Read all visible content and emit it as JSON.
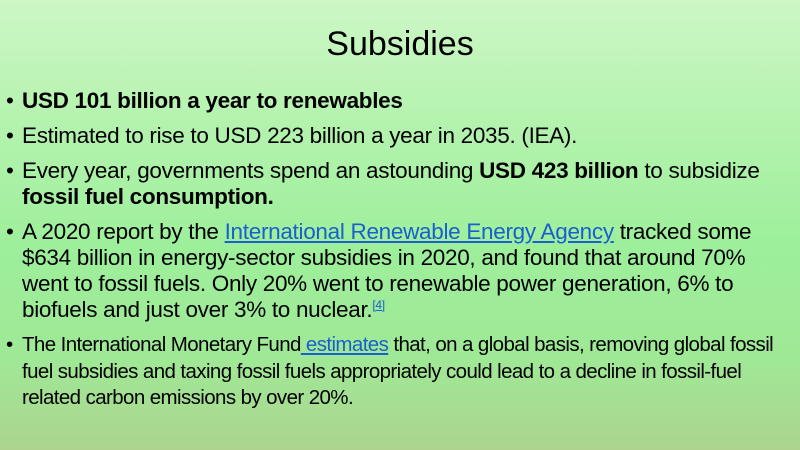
{
  "slide": {
    "title": "Subsidies",
    "bullets": [
      {
        "bold": "USD 101 billion a year to renewables"
      },
      {
        "text": "Estimated to rise to USD 223 billion a year in 2035. (IEA)."
      },
      {
        "t1": "Every year, governments spend an astounding ",
        "b1": "USD 423 billion",
        "t2": " to subsidize ",
        "b2": "fossil fuel consumption."
      },
      {
        "t1": "A 2020 report by the ",
        "link": "International Renewable Energy Agency",
        "t2": " tracked some $634 billion in energy-sector subsidies in 2020, and found that around 70% went to fossil fuels. Only 20% went to renewable power generation, 6% to biofuels and just over 3% to nuclear.",
        "ref": "[4]"
      },
      {
        "t1": "The International Monetary Fund",
        "link": " estimates",
        "t2": " that, on a global basis, removing global fossil fuel subsidies and taxing fossil fuels appropriately could lead to a decline in fossil-fuel related carbon emissions by over 20%."
      }
    ]
  },
  "colors": {
    "link": "#1a5fd0"
  }
}
